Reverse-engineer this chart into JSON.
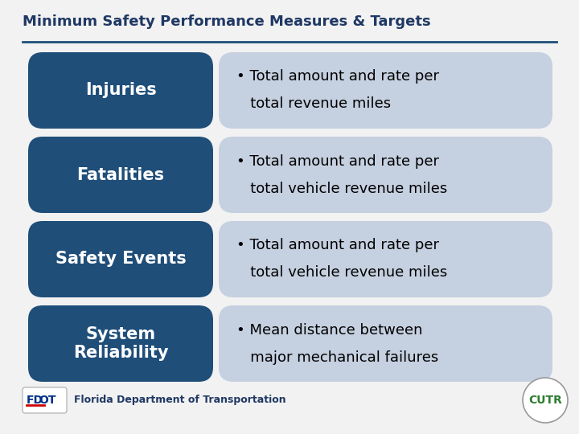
{
  "title": "Minimum Safety Performance Measures & Targets",
  "title_color": "#1F3864",
  "title_fontsize": 13,
  "bg_color": "#F2F2F2",
  "left_box_color": "#1F4E79",
  "right_box_color": "#C5D0E0",
  "left_text_color": "#FFFFFF",
  "right_text_color": "#000000",
  "rows": [
    {
      "left_label": "Injuries",
      "right_line1": "• Total amount and rate per",
      "right_line2": "   total revenue miles"
    },
    {
      "left_label": "Fatalities",
      "right_line1": "• Total amount and rate per",
      "right_line2": "   total vehicle revenue miles"
    },
    {
      "left_label": "Safety Events",
      "right_line1": "• Total amount and rate per",
      "right_line2": "   total vehicle revenue miles"
    },
    {
      "left_label": "System\nReliability",
      "right_line1": "• Mean distance between",
      "right_line2": "   major mechanical failures"
    }
  ],
  "footer_text": "Florida Department of Transportation",
  "footer_color": "#1F3864",
  "cutr_text": "CUTR",
  "cutr_color": "#2E7D32",
  "separator_color": "#1F4E79"
}
